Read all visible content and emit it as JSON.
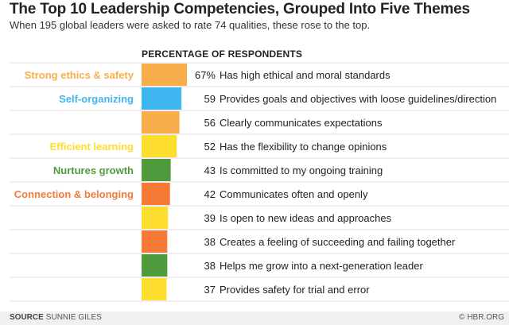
{
  "header": {
    "title": "The Top 10 Leadership Competencies, Grouped Into Five Themes",
    "subtitle": "When 195 global leaders were asked to rate 74 qualities, these rose to the top."
  },
  "footer": {
    "source_label": "SOURCE",
    "source_name": "SUNNIE GILES",
    "credit": "© HBR.ORG"
  },
  "colors": {
    "ethics": "#FAAE4B",
    "self_organizing": "#3FB6F0",
    "learning": "#FDDD2E",
    "growth": "#4F9A3D",
    "connection": "#F47A36",
    "gridline": "#dddddd"
  },
  "chart_data": {
    "type": "bar",
    "orientation": "horizontal",
    "title": "The Top 10 Leadership Competencies, Grouped Into Five Themes",
    "subtitle": "When 195 global leaders were asked to rate 74 qualities, these rose to the top.",
    "value_axis_label": "PERCENTAGE OF RESPONDENTS",
    "value_suffix_first": "%",
    "xlim": [
      0,
      67
    ],
    "grid": false,
    "legend": "theme labels at left of bars",
    "categories": [
      "Has high ethical and moral standards",
      "Provides goals and objectives with loose guidelines/direction",
      "Clearly communicates expectations",
      "Has the flexibility to change opinions",
      "Is committed to my ongoing training",
      "Communicates often and openly",
      "Is open to new ideas and approaches",
      "Creates a feeling of succeeding and failing together",
      "Helps me grow into a next-generation leader",
      "Provides safety for trial and error"
    ],
    "values": [
      67,
      59,
      56,
      52,
      43,
      42,
      39,
      38,
      38,
      37
    ],
    "value_labels": [
      "67%",
      "59",
      "56",
      "52",
      "43",
      "42",
      "39",
      "38",
      "38",
      "37"
    ],
    "bar_themes": [
      "ethics",
      "self_organizing",
      "ethics",
      "learning",
      "growth",
      "connection",
      "learning",
      "connection",
      "growth",
      "learning"
    ],
    "theme_labels": [
      {
        "row": 0,
        "theme": "ethics",
        "text": "Strong ethics & safety"
      },
      {
        "row": 1,
        "theme": "self_organizing",
        "text": "Self-organizing"
      },
      {
        "row": 3,
        "theme": "learning",
        "text": "Efficient learning"
      },
      {
        "row": 4,
        "theme": "growth",
        "text": "Nurtures growth"
      },
      {
        "row": 5,
        "theme": "connection",
        "text": "Connection & belonging"
      }
    ]
  }
}
